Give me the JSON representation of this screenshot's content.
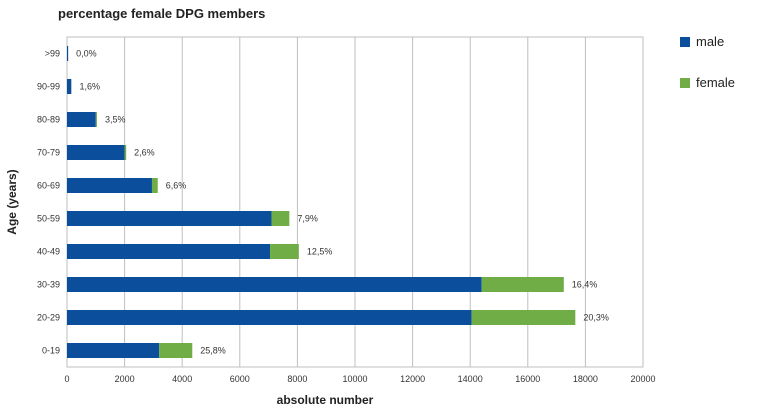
{
  "chart_data": {
    "type": "bar",
    "orientation": "horizontal",
    "stacked": true,
    "title": "percentage female DPG members",
    "xlabel": "absolute number",
    "ylabel": "Age (years)",
    "xlim": [
      0,
      20000
    ],
    "xticks": [
      0,
      2000,
      4000,
      6000,
      8000,
      10000,
      12000,
      14000,
      16000,
      18000,
      20000
    ],
    "grid": true,
    "legend_position": "top-right",
    "categories": [
      ">99",
      "90-99",
      "80-89",
      "70-79",
      "60-69",
      "50-59",
      "40-49",
      "30-39",
      "20-29",
      "0-19"
    ],
    "series": [
      {
        "name": "male",
        "color": "#0b4f9c",
        "values": [
          40,
          150,
          1000,
          2000,
          2950,
          7100,
          7050,
          14400,
          14050,
          3200
        ]
      },
      {
        "name": "female",
        "color": "#70ad47",
        "values": [
          0,
          5,
          40,
          55,
          200,
          620,
          1000,
          2850,
          3600,
          1150
        ]
      }
    ],
    "data_labels": [
      "0,0%",
      "1,6%",
      "3,5%",
      "2,6%",
      "6,6%",
      "7,9%",
      "12,5%",
      "16,4%",
      "20,3%",
      "25,8%"
    ]
  }
}
